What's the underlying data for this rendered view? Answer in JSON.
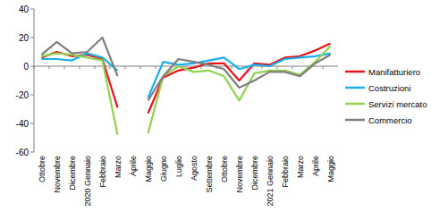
{
  "chart_data": {
    "type": "line",
    "categories": [
      "Ottobre",
      "Novembre",
      "Dicembre",
      "2020 Gennaio",
      "Febbraio",
      "Marzo",
      "Aprile",
      "Maggio",
      "Giugno",
      "Luglio",
      "Agosto",
      "Settembre",
      "Ottobre",
      "Novembre",
      "Dicembre",
      "2021 Gennaio",
      "Febbraio",
      "Marzo",
      "Aprile",
      "Maggio"
    ],
    "series": [
      {
        "name": "Manifatturiero",
        "color": "#e8131b",
        "values": [
          6,
          10,
          7,
          8,
          5,
          -29,
          null,
          -33,
          -8,
          -3,
          -1,
          2,
          2,
          -10,
          2,
          1,
          6,
          7,
          11,
          16
        ]
      },
      {
        "name": "Costruzioni",
        "color": "#1ab0e8",
        "values": [
          5,
          5,
          4,
          9,
          6,
          -3,
          null,
          -22,
          3,
          1,
          2,
          4,
          6,
          -2,
          1,
          0,
          5,
          6,
          7,
          9
        ]
      },
      {
        "name": "Servizi mercato",
        "color": "#92d050",
        "values": [
          7,
          9,
          8,
          6,
          4,
          -48,
          null,
          -47,
          -7,
          0,
          -4,
          -3,
          -7,
          -24,
          -5,
          -3,
          -3,
          -6,
          3,
          14
        ]
      },
      {
        "name": "Commercio",
        "color": "#7f7f7f",
        "values": [
          8,
          17,
          9,
          10,
          20,
          -7,
          null,
          -24,
          -7,
          5,
          3,
          1,
          -2,
          -15,
          -10,
          -4,
          -4,
          -7,
          2,
          8
        ]
      }
    ],
    "ylim": [
      -60,
      40
    ],
    "yticks": [
      -60,
      -40,
      -20,
      0,
      20,
      40
    ],
    "grid": false,
    "legend": "right"
  }
}
